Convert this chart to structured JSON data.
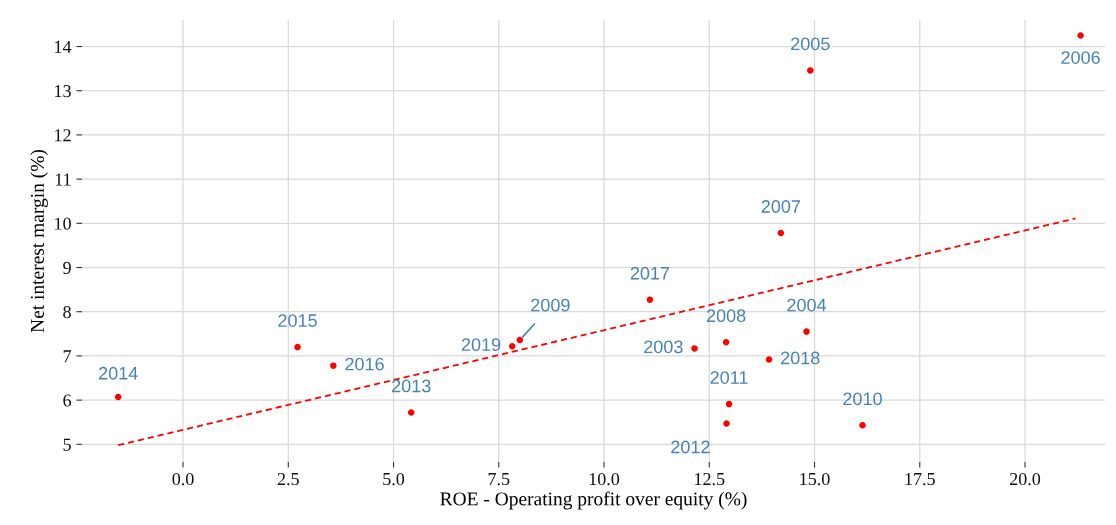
{
  "chart_data": {
    "type": "scatter",
    "xlabel": "ROE - Operating profit over equity (%)",
    "ylabel": "Net interest margin (%)",
    "series": [
      {
        "color": "#ff0000",
        "marker": "circle",
        "x": [
          -1.54,
          2.72,
          3.57,
          5.42,
          7.82,
          8.0,
          11.09,
          12.15,
          12.9,
          14.81,
          13.92,
          12.97,
          12.91,
          16.14,
          14.9,
          21.32,
          14.2
        ],
        "values": [
          6.07,
          7.2,
          6.78,
          5.72,
          7.22,
          7.36,
          8.27,
          7.17,
          7.31,
          7.55,
          6.92,
          5.91,
          5.47,
          5.43,
          13.46,
          14.25,
          9.78
        ]
      },
      {
        "type": "line",
        "color": "#ff0000",
        "line_style": "dashed",
        "x": [
          -1.54,
          21.2
        ],
        "values": [
          4.98,
          10.11
        ]
      }
    ],
    "annotations": [
      {
        "text": "2014",
        "x": -1.54,
        "y": 6.07
      },
      {
        "text": "2015",
        "x": 2.72,
        "y": 7.2
      },
      {
        "text": "2016",
        "x": 3.57,
        "y": 6.78
      },
      {
        "text": "2013",
        "x": 5.42,
        "y": 5.72
      },
      {
        "text": "2019",
        "x": 7.82,
        "y": 7.22
      },
      {
        "text": "2009",
        "x": 8.0,
        "y": 7.36
      },
      {
        "text": "2017",
        "x": 11.09,
        "y": 8.27
      },
      {
        "text": "2003",
        "x": 12.15,
        "y": 7.17
      },
      {
        "text": "2008",
        "x": 12.9,
        "y": 7.31
      },
      {
        "text": "2004",
        "x": 14.81,
        "y": 7.55
      },
      {
        "text": "2018",
        "x": 13.92,
        "y": 6.92
      },
      {
        "text": "2011",
        "x": 12.97,
        "y": 5.91
      },
      {
        "text": "2012",
        "x": 12.91,
        "y": 5.47
      },
      {
        "text": "2010",
        "x": 16.14,
        "y": 5.43
      },
      {
        "text": "2005",
        "x": 14.9,
        "y": 13.46
      },
      {
        "text": "2006",
        "x": 21.32,
        "y": 14.25
      },
      {
        "text": "2007",
        "x": 14.2,
        "y": 9.78
      }
    ],
    "xlim": [
      -2.4,
      21.9
    ],
    "ylim": [
      4.6,
      14.6
    ],
    "xticks": [
      {
        "value": 0,
        "label": "0.0"
      },
      {
        "value": 2.5,
        "label": "2.5"
      },
      {
        "value": 5,
        "label": "5.0"
      },
      {
        "value": 7.5,
        "label": "7.5"
      },
      {
        "value": 10,
        "label": "10.0"
      },
      {
        "value": 12.5,
        "label": "12.5"
      },
      {
        "value": 15,
        "label": "15.0"
      },
      {
        "value": 17.5,
        "label": "17.5"
      },
      {
        "value": 20,
        "label": "20.0"
      }
    ],
    "yticks": [
      5,
      6,
      7,
      8,
      9,
      10,
      11,
      12,
      13,
      14
    ],
    "grid": true,
    "legend": false
  }
}
